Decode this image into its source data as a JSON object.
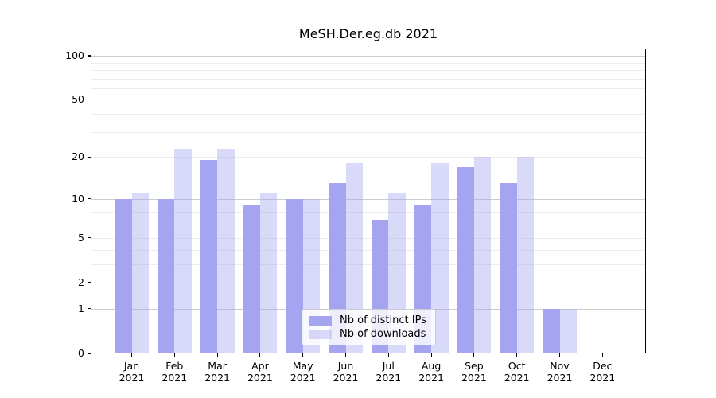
{
  "figure": {
    "title": "MeSH.Der.eg.db 2021"
  },
  "chart_data": {
    "type": "bar",
    "title": "MeSH.Der.eg.db 2021",
    "categories": [
      "Jan",
      "Feb",
      "Mar",
      "Apr",
      "May",
      "Jun",
      "Jul",
      "Aug",
      "Sep",
      "Oct",
      "Nov",
      "Dec"
    ],
    "category_year": "2021",
    "series": [
      {
        "name": "Nb of distinct IPs",
        "color": "#a4a4f0",
        "opacity": 1,
        "values": [
          10,
          10,
          19,
          9,
          10,
          13,
          7,
          9,
          17,
          13,
          1,
          0
        ]
      },
      {
        "name": "Nb of downloads",
        "color": "#a4a4f0",
        "opacity": 0.42,
        "values": [
          11,
          23,
          23,
          11,
          10,
          18,
          11,
          18,
          20,
          20,
          1,
          0
        ]
      }
    ],
    "xlabel": "",
    "ylabel": "",
    "yscale": "log10(value+1)",
    "ylim": [
      0,
      112
    ],
    "ytick_values": [
      0,
      1,
      2,
      5,
      10,
      20,
      50,
      100
    ],
    "ytick_labels": [
      "0",
      "1",
      "2",
      "5",
      "10",
      "20",
      "50",
      "100"
    ],
    "grid_major": [
      1,
      10,
      100
    ],
    "grid_minor": [
      2,
      3,
      4,
      5,
      6,
      7,
      8,
      9,
      20,
      30,
      40,
      50,
      60,
      70,
      80,
      90
    ],
    "grid": true,
    "legend_position": "lower-center"
  },
  "colors": {
    "background": "#ffffff",
    "axis": "#000000",
    "grid_major": "#cccccc",
    "grid_minor": "#ececec",
    "legend_border": "#cbcbcb",
    "legend_background": "rgba(255,255,255,0.8)"
  }
}
